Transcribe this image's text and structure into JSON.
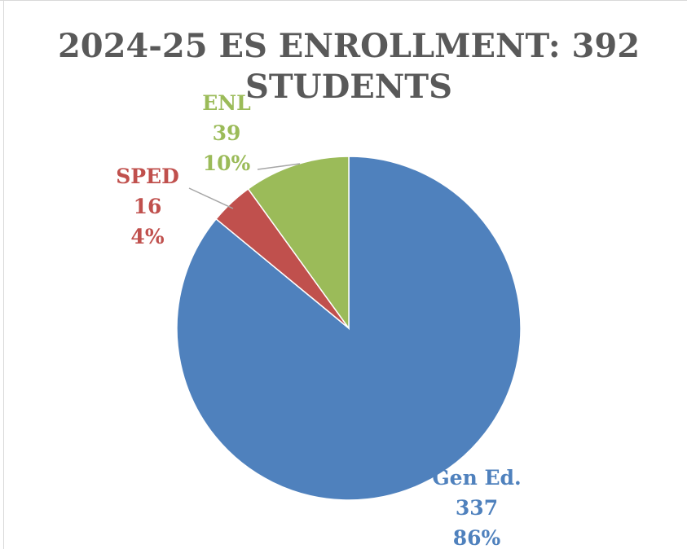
{
  "chart_data": {
    "type": "pie",
    "title_lines": [
      "2024-25 ES ENROLLMENT: 392",
      "STUDENTS"
    ],
    "slices": [
      {
        "label": "Gen Ed.",
        "value": 337,
        "percent": "86%",
        "color": "#4F81BD"
      },
      {
        "label": "SPED",
        "value": 16,
        "percent": "4%",
        "color": "#C0504D"
      },
      {
        "label": "ENL",
        "value": 39,
        "percent": "10%",
        "color": "#9BBB59"
      }
    ],
    "slice_order": "clockwise from top",
    "legend": "none",
    "leader_line_color": "#a6a6a6"
  }
}
